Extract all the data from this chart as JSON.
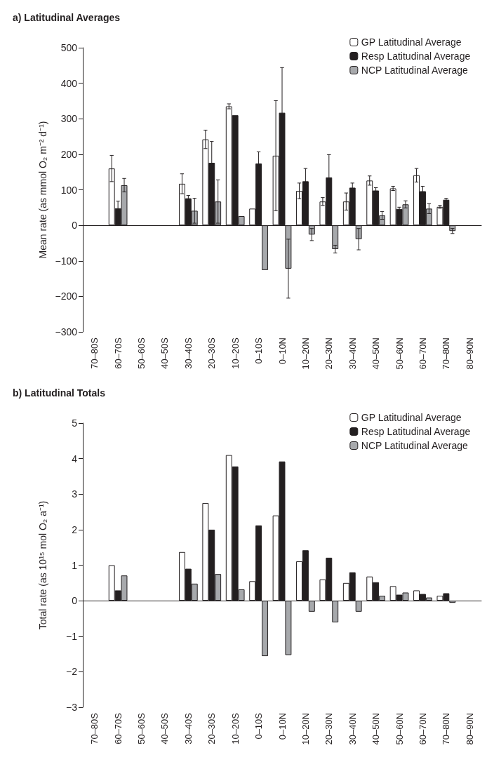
{
  "chart_data": [
    {
      "type": "bar",
      "title": "a) Latitudinal Averages",
      "ylabel": "Mean rate (as mmol O₂ m⁻² d⁻¹)",
      "categories": [
        "70–80S",
        "60–70S",
        "50–60S",
        "40–50S",
        "30–40S",
        "20–30S",
        "10–20S",
        "0–10S",
        "0–10N",
        "10–20N",
        "20–30N",
        "30–40N",
        "40–50N",
        "50–60N",
        "60–70N",
        "70–80N",
        "80–90N"
      ],
      "ylim": [
        -300,
        500
      ],
      "yticks": [
        {
          "value": -300,
          "label": "−300"
        },
        {
          "value": -200,
          "label": "−200"
        },
        {
          "value": -100,
          "label": "−100"
        },
        0,
        100,
        200,
        300,
        400,
        500
      ],
      "legend": "top right",
      "series": [
        {
          "name": "GP Latitudinal Average",
          "color": "#ffffff",
          "values": [
            null,
            160,
            null,
            null,
            117,
            242,
            335,
            47,
            196,
            97,
            67,
            67,
            126,
            104,
            141,
            52,
            null
          ],
          "errors": [
            null,
            37,
            null,
            null,
            28,
            26,
            7,
            null,
            155,
            22,
            11,
            24,
            13,
            6,
            19,
            4,
            null
          ]
        },
        {
          "name": "Resp Latitudinal Average",
          "color": "#231f20",
          "values": [
            null,
            48,
            null,
            null,
            76,
            176,
            310,
            174,
            317,
            124,
            135,
            106,
            98,
            46,
            96,
            72,
            null
          ],
          "errors": [
            null,
            20,
            null,
            null,
            8,
            60,
            null,
            33,
            127,
            36,
            64,
            13,
            8,
            5,
            14,
            4,
            null
          ]
        },
        {
          "name": "NCP Latitudinal Average",
          "color": "#a7a9ac",
          "values": [
            null,
            113,
            null,
            null,
            41,
            67,
            26,
            -126,
            -122,
            -26,
            -67,
            -39,
            28,
            59,
            47,
            -16,
            null
          ],
          "errors": [
            null,
            19,
            null,
            null,
            35,
            61,
            null,
            null,
            83,
            17,
            11,
            30,
            11,
            10,
            14,
            7,
            null
          ]
        }
      ]
    },
    {
      "type": "bar",
      "title": "b) Latitudinal Totals",
      "ylabel": "Total rate (as 10¹⁵ mol O₂ a⁻¹)",
      "categories": [
        "70–80S",
        "60–70S",
        "50–60S",
        "40–50S",
        "30–40S",
        "20–30S",
        "10–20S",
        "0–10S",
        "0–10N",
        "10–20N",
        "20–30N",
        "30–40N",
        "40–50N",
        "50–60N",
        "60–70N",
        "70–80N",
        "80–90N"
      ],
      "ylim": [
        -3,
        5
      ],
      "yticks": [
        {
          "value": -3,
          "label": "−3"
        },
        {
          "value": -2,
          "label": "−2"
        },
        {
          "value": -1,
          "label": "−1"
        },
        0,
        1,
        2,
        3,
        4,
        5
      ],
      "legend": "top right",
      "series": [
        {
          "name": "GP Latitudinal Average",
          "color": "#ffffff",
          "values": [
            null,
            1.0,
            null,
            null,
            1.37,
            2.75,
            4.1,
            0.55,
            2.4,
            1.11,
            0.6,
            0.5,
            0.68,
            0.41,
            0.29,
            0.14,
            null
          ]
        },
        {
          "name": "Resp Latitudinal Average",
          "color": "#231f20",
          "values": [
            null,
            0.29,
            null,
            null,
            0.9,
            2.0,
            3.78,
            2.12,
            3.92,
            1.42,
            1.21,
            0.8,
            0.52,
            0.17,
            0.19,
            0.21,
            null
          ]
        },
        {
          "name": "NCP Latitudinal Average",
          "color": "#a7a9ac",
          "values": [
            null,
            0.71,
            null,
            null,
            0.48,
            0.75,
            0.32,
            -1.56,
            -1.53,
            -0.31,
            -0.61,
            -0.31,
            0.14,
            0.23,
            0.09,
            -0.06,
            null
          ]
        }
      ]
    }
  ]
}
